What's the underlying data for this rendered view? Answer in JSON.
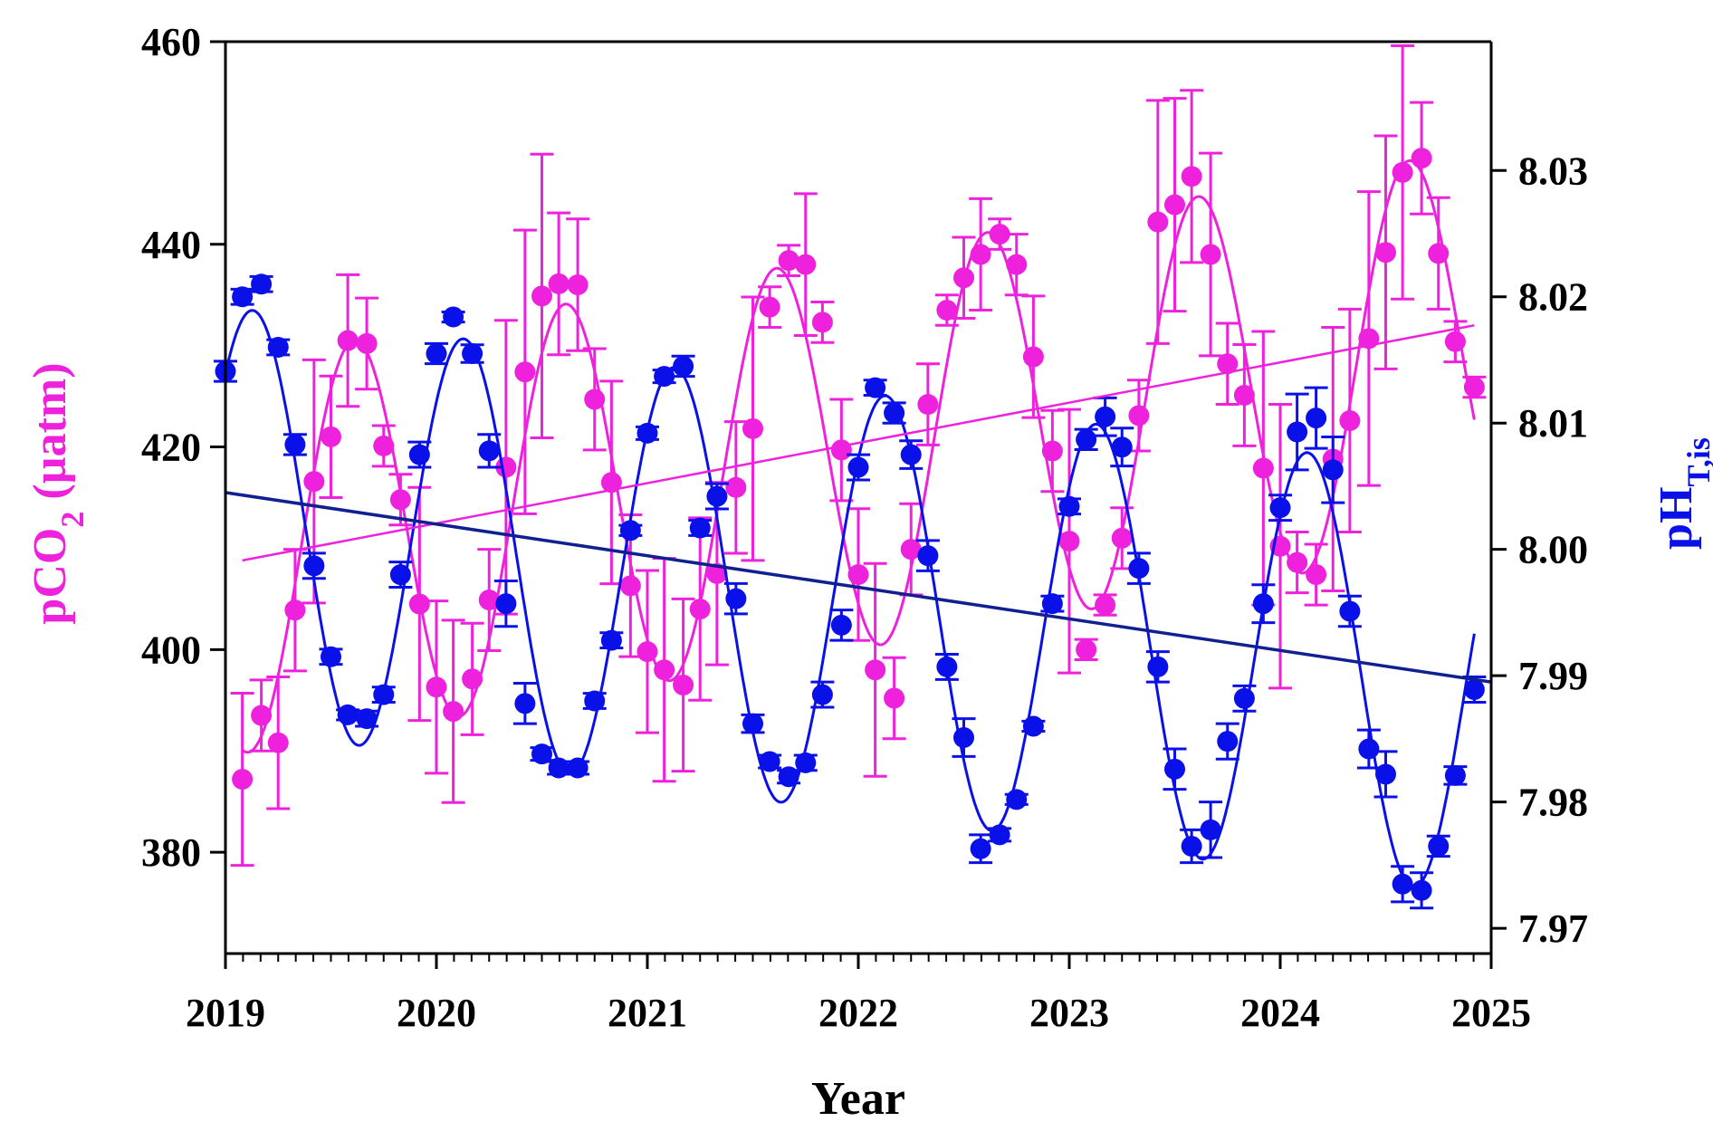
{
  "chart_data": {
    "type": "scatter",
    "title": "",
    "xlabel": "Year",
    "ylabel_left": "pCO2 (µatm)",
    "ylabel_left_parts": {
      "main": "pCO",
      "sub": "2",
      "unit": " (µatm)"
    },
    "ylabel_right": "pHT,is",
    "ylabel_right_parts": {
      "main": "pH",
      "sub": "T,is"
    },
    "xlim": [
      2019,
      2025
    ],
    "ylim_left": [
      370,
      460
    ],
    "ylim_right": [
      7.968,
      8.0402
    ],
    "x_ticks": [
      "2019",
      "2020",
      "2021",
      "2022",
      "2023",
      "2024",
      "2025"
    ],
    "x_tick_values": [
      2019,
      2020,
      2021,
      2022,
      2023,
      2024,
      2025
    ],
    "x_minor_ticks_per_year": 12,
    "y_left_ticks": [
      "380",
      "400",
      "420",
      "440",
      "460"
    ],
    "y_left_tick_values": [
      380,
      400,
      420,
      440,
      460
    ],
    "y_right_ticks": [
      "7.97",
      "7.98",
      "7.99",
      "8.00",
      "8.01",
      "8.02",
      "8.03"
    ],
    "y_right_tick_values": [
      7.97,
      7.98,
      7.99,
      8.0,
      8.01,
      8.02,
      8.03
    ],
    "grid": false,
    "legend": "none",
    "colors": {
      "pco2": "#ee22dd",
      "ph": "#0a10e8",
      "ph_trend": "#102090",
      "axis": "#000000"
    },
    "series": [
      {
        "name": "pCO2",
        "axis": "left",
        "color": "#ee22dd",
        "x": [
          2019.08,
          2019.17,
          2019.25,
          2019.33,
          2019.42,
          2019.5,
          2019.58,
          2019.67,
          2019.75,
          2019.83,
          2019.92,
          2020.0,
          2020.08,
          2020.17,
          2020.25,
          2020.33,
          2020.42,
          2020.5,
          2020.58,
          2020.67,
          2020.75,
          2020.83,
          2020.92,
          2021.0,
          2021.08,
          2021.17,
          2021.25,
          2021.33,
          2021.42,
          2021.5,
          2021.58,
          2021.67,
          2021.75,
          2021.83,
          2021.92,
          2022.0,
          2022.08,
          2022.17,
          2022.25,
          2022.33,
          2022.42,
          2022.5,
          2022.58,
          2022.67,
          2022.75,
          2022.83,
          2022.92,
          2023.0,
          2023.08,
          2023.17,
          2023.25,
          2023.33,
          2023.42,
          2023.5,
          2023.58,
          2023.67,
          2023.75,
          2023.83,
          2023.92,
          2024.0,
          2024.08,
          2024.17,
          2024.25,
          2024.33,
          2024.42,
          2024.5,
          2024.58,
          2024.67,
          2024.75,
          2024.83,
          2024.92
        ],
        "values": [
          387.2,
          393.5,
          390.8,
          403.9,
          416.6,
          421.0,
          430.5,
          430.2,
          420.1,
          414.8,
          404.5,
          396.3,
          393.9,
          397.1,
          404.9,
          418.0,
          427.4,
          434.9,
          436.1,
          436.0,
          424.7,
          416.5,
          406.3,
          399.8,
          398.0,
          396.5,
          404.0,
          407.5,
          416.0,
          421.8,
          433.8,
          438.4,
          438.0,
          432.3,
          419.7,
          407.4,
          398.0,
          395.2,
          409.9,
          424.2,
          433.5,
          436.7,
          439.0,
          441.0,
          438.0,
          428.9,
          419.6,
          410.7,
          400.0,
          404.4,
          411.0,
          423.1,
          442.2,
          443.9,
          446.7,
          439.0,
          428.2,
          425.1,
          417.9,
          410.2,
          408.6,
          407.4,
          418.8,
          422.6,
          430.7,
          439.2,
          447.1,
          448.5,
          439.1,
          430.4,
          425.9
        ],
        "errors": [
          8.5,
          3.5,
          6.5,
          6.0,
          12.0,
          6.0,
          6.5,
          4.5,
          2.0,
          2.5,
          11.5,
          8.5,
          9.0,
          5.5,
          5.0,
          14.5,
          14.0,
          14.0,
          7.0,
          6.5,
          5.0,
          10.0,
          7.0,
          8.0,
          11.0,
          8.5,
          9.0,
          9.0,
          6.5,
          13.0,
          2.0,
          1.5,
          7.0,
          2.0,
          5.0,
          6.5,
          10.5,
          4.0,
          4.5,
          4.0,
          1.5,
          4.0,
          5.5,
          1.5,
          3.0,
          6.0,
          4.0,
          13.0,
          1.0,
          1.0,
          3.0,
          3.5,
          12.0,
          10.5,
          8.5,
          10.0,
          4.0,
          5.0,
          13.5,
          14.0,
          3.0,
          3.0,
          13.0,
          11.0,
          14.5,
          11.5,
          12.5,
          5.5,
          5.5,
          2.0,
          1.0
        ],
        "fit": "sinusoid+trend"
      },
      {
        "name": "pHT,is",
        "axis": "right",
        "color": "#0a10e8",
        "x": [
          2019.0,
          2019.08,
          2019.17,
          2019.25,
          2019.33,
          2019.42,
          2019.5,
          2019.58,
          2019.67,
          2019.75,
          2019.83,
          2019.92,
          2020.0,
          2020.08,
          2020.17,
          2020.25,
          2020.33,
          2020.42,
          2020.5,
          2020.58,
          2020.67,
          2020.75,
          2020.83,
          2020.92,
          2021.0,
          2021.08,
          2021.17,
          2021.25,
          2021.33,
          2021.42,
          2021.5,
          2021.58,
          2021.67,
          2021.75,
          2021.83,
          2021.92,
          2022.0,
          2022.08,
          2022.17,
          2022.25,
          2022.33,
          2022.42,
          2022.5,
          2022.58,
          2022.67,
          2022.75,
          2022.83,
          2022.92,
          2023.0,
          2023.08,
          2023.17,
          2023.25,
          2023.33,
          2023.42,
          2023.5,
          2023.58,
          2023.67,
          2023.75,
          2023.83,
          2023.92,
          2024.0,
          2024.08,
          2024.17,
          2024.25,
          2024.33,
          2024.42,
          2024.5,
          2024.58,
          2024.67,
          2024.75,
          2024.83,
          2024.92
        ],
        "values": [
          8.0141,
          8.02,
          8.021,
          8.016,
          8.0083,
          7.9987,
          7.9915,
          7.9869,
          7.9866,
          7.9885,
          7.998,
          8.0075,
          8.0155,
          8.0184,
          8.0155,
          8.0078,
          7.9957,
          7.9878,
          7.9838,
          7.9827,
          7.9827,
          7.988,
          7.9928,
          8.0015,
          8.0092,
          8.0137,
          8.0145,
          8.0017,
          8.0042,
          7.9961,
          7.9862,
          7.9832,
          7.982,
          7.9831,
          7.9885,
          7.994,
          8.0065,
          8.0128,
          8.0108,
          8.0075,
          7.9995,
          7.9907,
          7.9851,
          7.9763,
          7.9774,
          7.9802,
          7.986,
          7.9957,
          8.0034,
          8.0087,
          8.0105,
          8.0081,
          7.9985,
          7.9907,
          7.9826,
          7.9765,
          7.9778,
          7.9848,
          7.9882,
          7.9957,
          8.0033,
          8.0093,
          8.0104,
          8.0063,
          7.9951,
          7.9842,
          7.9822,
          7.9735,
          7.973,
          7.9765,
          7.9821,
          7.9889
        ],
        "errors": [
          0.0008,
          0.0006,
          0.0006,
          0.0006,
          0.0008,
          0.001,
          0.0006,
          0.0004,
          0.0006,
          0.0006,
          0.001,
          0.001,
          0.0008,
          0.0004,
          0.0007,
          0.0013,
          0.0018,
          0.0016,
          0.0005,
          0.0005,
          0.0005,
          0.0006,
          0.0006,
          0.0004,
          0.0005,
          0.0005,
          0.0008,
          0.0006,
          0.001,
          0.0012,
          0.0007,
          0.0005,
          0.0005,
          0.0006,
          0.001,
          0.0012,
          0.001,
          0.0006,
          0.0008,
          0.0011,
          0.0012,
          0.001,
          0.0015,
          0.0011,
          0.0005,
          0.0004,
          0.0004,
          0.0006,
          0.0006,
          0.0008,
          0.0015,
          0.0015,
          0.0012,
          0.0012,
          0.0016,
          0.0013,
          0.0022,
          0.0014,
          0.001,
          0.0015,
          0.001,
          0.003,
          0.0024,
          0.0026,
          0.0012,
          0.0015,
          0.0018,
          0.0014,
          0.0014,
          0.0008,
          0.0007,
          0.001
        ],
        "fit": "sinusoid+trend"
      }
    ],
    "trend_lines": [
      {
        "name": "pCO2 trend",
        "axis": "left",
        "color": "#ee22dd",
        "x": [
          2019.08,
          2024.92
        ],
        "values": [
          408.8,
          432.0
        ]
      },
      {
        "name": "pH trend",
        "axis": "right",
        "color": "#102090",
        "x": [
          2019.0,
          2025.0
        ],
        "values": [
          8.0045,
          7.9895
        ]
      }
    ]
  }
}
